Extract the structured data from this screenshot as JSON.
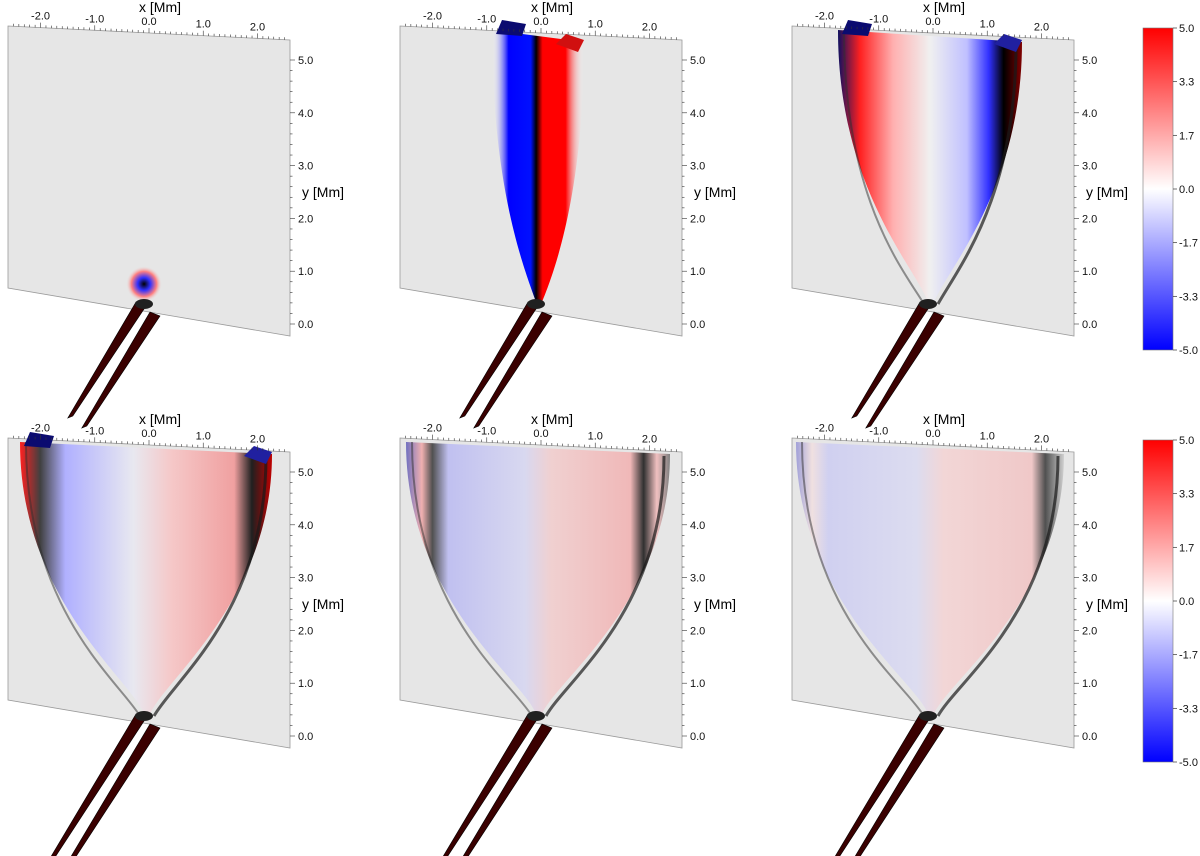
{
  "figure": {
    "x_axis_label": "x [Mm]",
    "y_axis_label": "y [Mm]",
    "x_ticks": [
      "-2.0",
      "-1.0",
      "0.0",
      "1.0",
      "2.0"
    ],
    "y_ticks": [
      "0.0",
      "1.0",
      "2.0",
      "3.0",
      "4.0",
      "5.0"
    ],
    "colorbar_ticks": [
      "5.0",
      "3.3",
      "1.7",
      "0.0",
      "-1.7",
      "-3.3",
      "-5.0"
    ],
    "colorbar_colors": {
      "high": "#ff0000",
      "mid": "#ffffff",
      "low": "#0000ff"
    },
    "plane_color": "#e6e6e6",
    "grid": false,
    "panels": [
      {
        "row": 1,
        "col": 1,
        "stage": 0
      },
      {
        "row": 1,
        "col": 2,
        "stage": 1
      },
      {
        "row": 1,
        "col": 3,
        "stage": 2
      },
      {
        "row": 2,
        "col": 1,
        "stage": 3
      },
      {
        "row": 2,
        "col": 2,
        "stage": 4
      },
      {
        "row": 2,
        "col": 3,
        "stage": 5
      }
    ]
  }
}
